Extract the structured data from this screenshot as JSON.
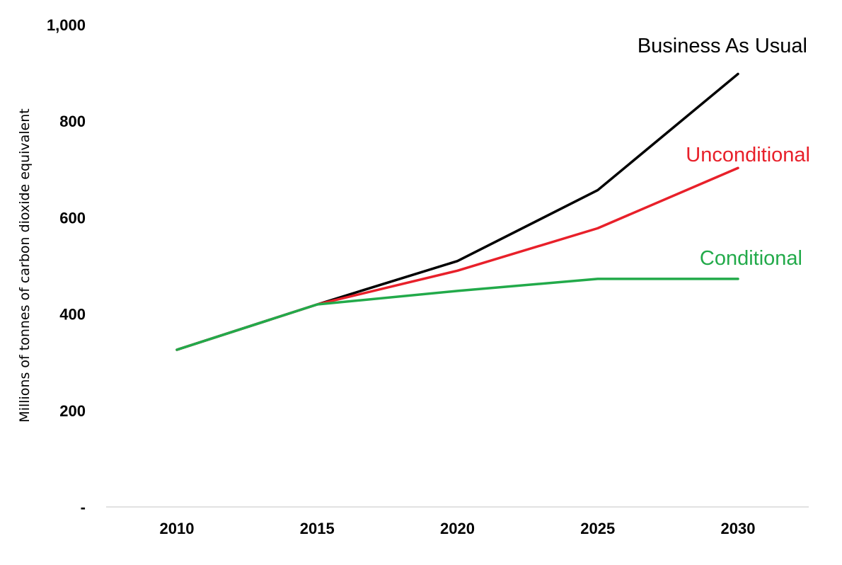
{
  "chart_data": {
    "type": "line",
    "title": "",
    "xlabel": "",
    "ylabel": "Millions of tonnes of carbon dioxide equivalent",
    "x": [
      "2010",
      "2015",
      "2020",
      "2025",
      "2030"
    ],
    "xlim": [
      2010,
      2030
    ],
    "ylim": [
      0,
      1000
    ],
    "y_ticks": [
      {
        "value": 0,
        "label": "-"
      },
      {
        "value": 200,
        "label": "200"
      },
      {
        "value": 400,
        "label": "400"
      },
      {
        "value": 600,
        "label": "600"
      },
      {
        "value": 800,
        "label": "800"
      },
      {
        "value": 1000,
        "label": "1,000"
      }
    ],
    "grid": false,
    "legend": "inline labels at line ends",
    "series": [
      {
        "name": "Business As Usual",
        "color": "#000000",
        "values": [
          326,
          420,
          510,
          657,
          898
        ]
      },
      {
        "name": "Unconditional",
        "color": "#e8202a",
        "values": [
          326,
          420,
          490,
          578,
          703
        ]
      },
      {
        "name": "Conditional",
        "color": "#22aa4a",
        "values": [
          326,
          420,
          448,
          473,
          473
        ]
      }
    ]
  }
}
